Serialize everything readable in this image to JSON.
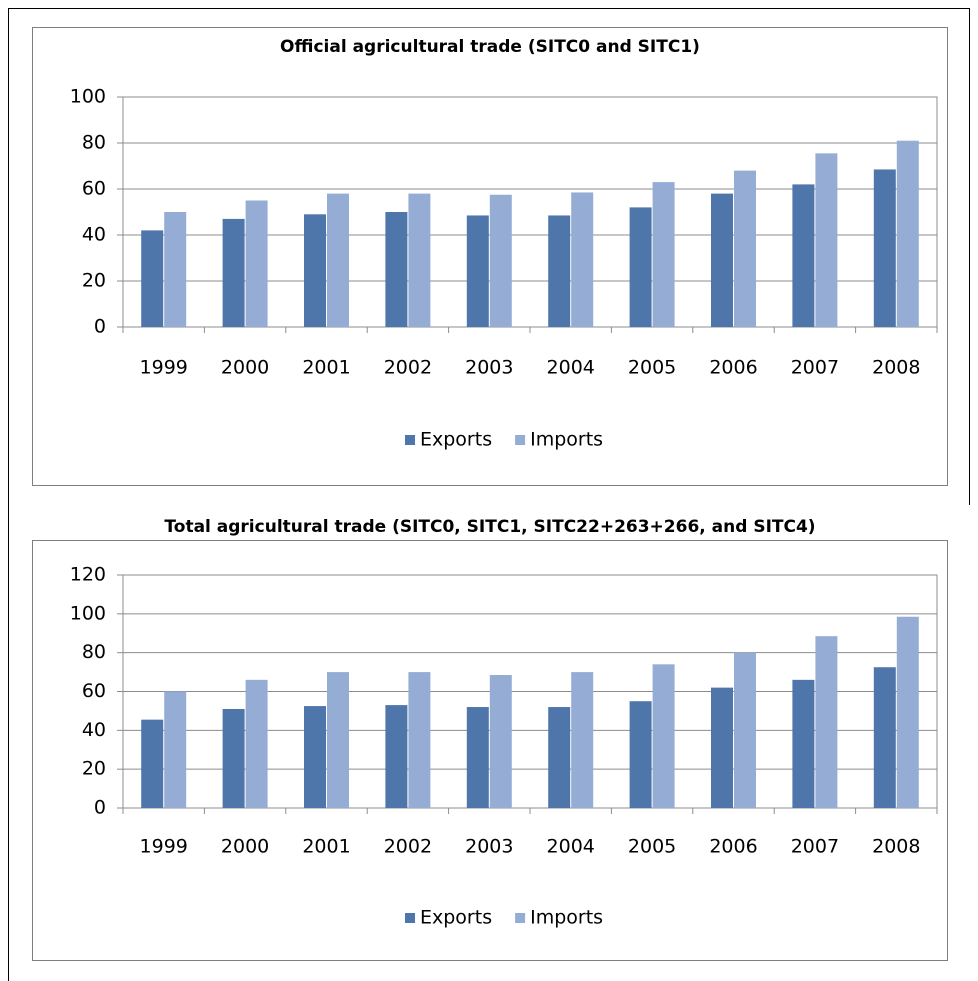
{
  "chart_data": [
    {
      "type": "bar",
      "title": "Official agricultural trade (SITC0 and SITC1)",
      "categories": [
        "1999",
        "2000",
        "2001",
        "2002",
        "2003",
        "2004",
        "2005",
        "2006",
        "2007",
        "2008"
      ],
      "series": [
        {
          "name": "Exports",
          "color": "#4f76ab",
          "values": [
            42,
            47,
            49,
            50,
            48.5,
            48.5,
            52,
            58,
            62,
            68.5
          ]
        },
        {
          "name": "Imports",
          "color": "#95add4",
          "values": [
            50,
            55,
            58,
            58,
            57.5,
            58.5,
            63,
            68,
            75.5,
            81
          ]
        }
      ],
      "ylim": [
        0,
        100
      ],
      "yticks": [
        0,
        20,
        40,
        60,
        80,
        100
      ],
      "grid": true,
      "legend": "bottom"
    },
    {
      "type": "bar",
      "title": "Total agricultural trade (SITC0, SITC1, SITC22+263+266, and SITC4)",
      "categories": [
        "1999",
        "2000",
        "2001",
        "2002",
        "2003",
        "2004",
        "2005",
        "2006",
        "2007",
        "2008"
      ],
      "series": [
        {
          "name": "Exports",
          "color": "#4f76ab",
          "values": [
            45.5,
            51,
            52.5,
            53,
            52,
            52,
            55,
            62,
            66,
            72.5
          ]
        },
        {
          "name": "Imports",
          "color": "#95add4",
          "values": [
            60,
            66,
            70,
            70,
            68.5,
            70,
            74,
            80,
            88.5,
            98.5
          ]
        }
      ],
      "ylim": [
        0,
        120
      ],
      "yticks": [
        0,
        20,
        40,
        60,
        80,
        100,
        120
      ],
      "grid": true,
      "legend": "bottom"
    }
  ]
}
